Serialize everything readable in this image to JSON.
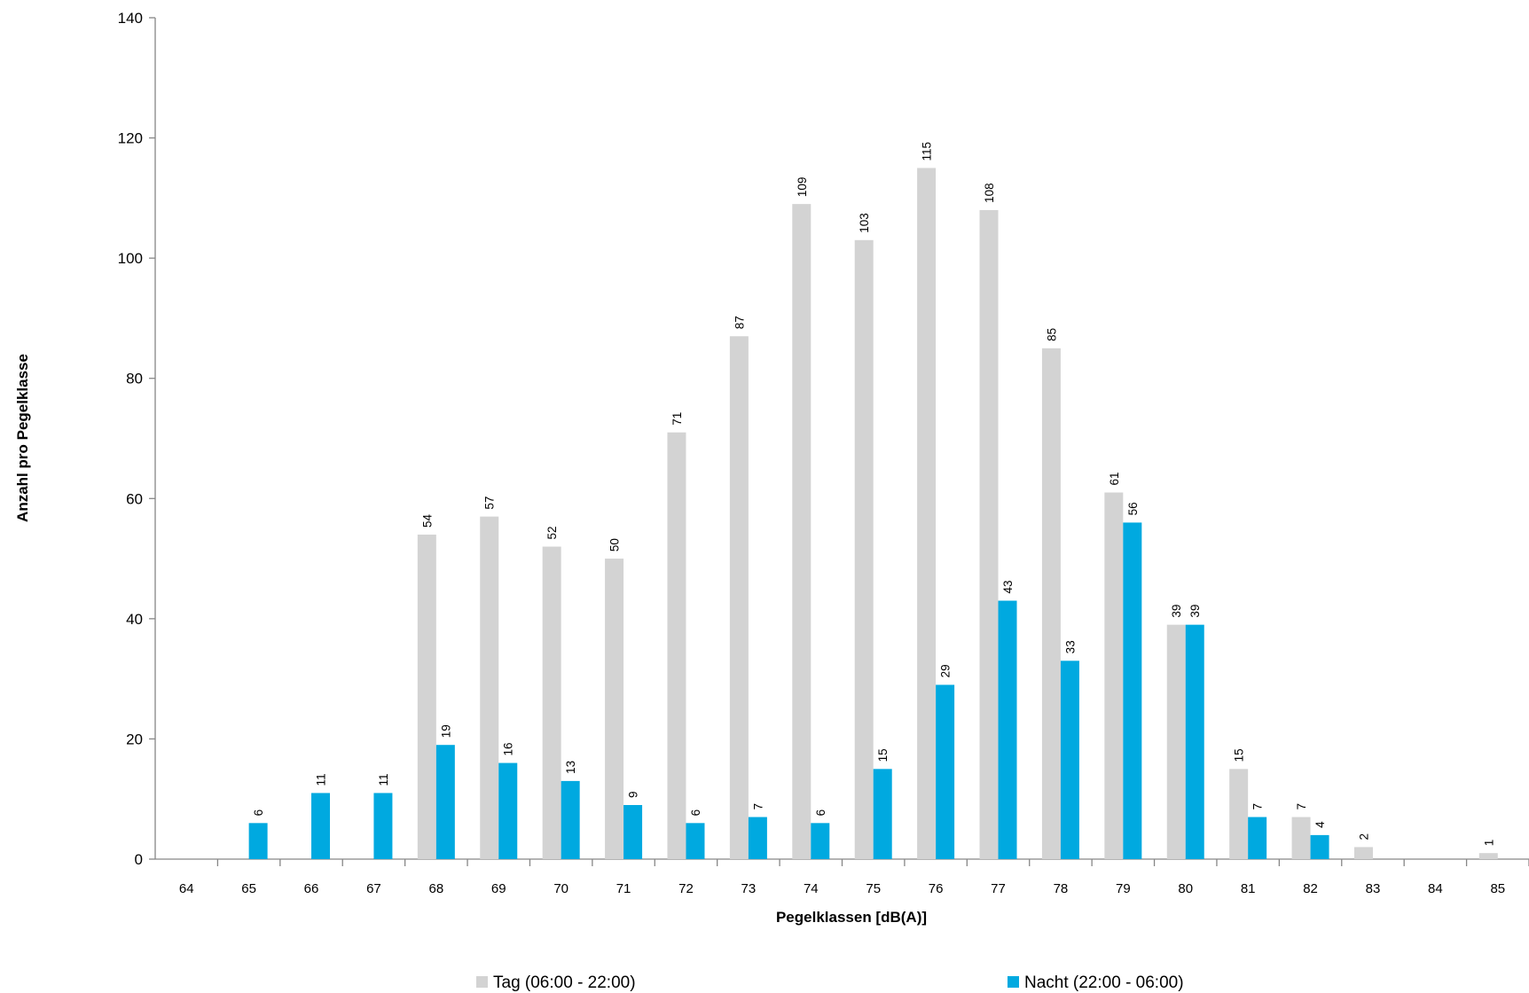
{
  "chart_data": {
    "type": "bar",
    "xlabel": "Pegelklassen [dB(A)]",
    "ylabel": "Anzahl pro Pegelklasse",
    "ylim": [
      0,
      140
    ],
    "yticks": [
      0,
      20,
      40,
      60,
      80,
      100,
      120,
      140
    ],
    "grid": false,
    "legend_position": "bottom",
    "categories": [
      "64",
      "65",
      "66",
      "67",
      "68",
      "69",
      "70",
      "71",
      "72",
      "73",
      "74",
      "75",
      "76",
      "77",
      "78",
      "79",
      "80",
      "81",
      "82",
      "83",
      "84",
      "85"
    ],
    "series": [
      {
        "name": "Tag (06:00 - 22:00)",
        "color": "#d3d3d3",
        "values": [
          0,
          0,
          0,
          0,
          54,
          57,
          52,
          50,
          71,
          87,
          109,
          103,
          115,
          108,
          85,
          61,
          39,
          15,
          7,
          2,
          0,
          1
        ]
      },
      {
        "name": "Nacht (22:00 - 06:00)",
        "color": "#00a9e0",
        "values": [
          0,
          6,
          11,
          11,
          19,
          16,
          13,
          9,
          6,
          7,
          6,
          15,
          29,
          43,
          33,
          56,
          39,
          7,
          4,
          0,
          0,
          0
        ]
      }
    ]
  }
}
